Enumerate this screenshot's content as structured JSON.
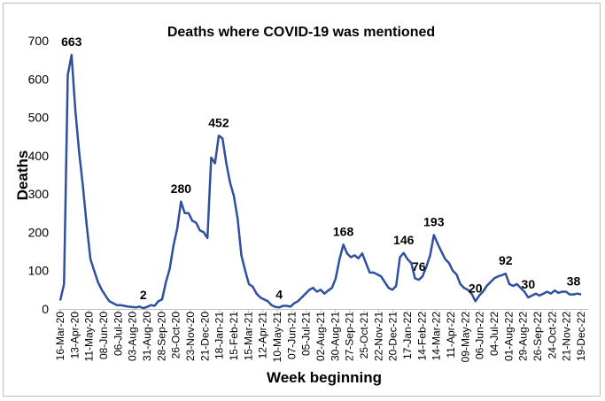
{
  "chart_data": {
    "type": "line",
    "title": "Deaths where COVID-19 was mentioned",
    "xlabel": "Week beginning",
    "ylabel": "Deaths",
    "ylim": [
      0,
      700
    ],
    "yticks": [
      0,
      100,
      200,
      300,
      400,
      500,
      600,
      700
    ],
    "grid": false,
    "legend": "none",
    "line_color": "#2f4f9f",
    "xtick_labels": [
      "16-Mar-20",
      "13-Apr-20",
      "11-May-20",
      "08-Jun-20",
      "06-Jul-20",
      "03-Aug-20",
      "31-Aug-20",
      "28-Sep-20",
      "26-Oct-20",
      "23-Nov-20",
      "21-Dec-20",
      "18-Jan-21",
      "15-Feb-21",
      "15-Mar-21",
      "12-Apr-21",
      "10-May-21",
      "07-Jun-21",
      "05-Jul-21",
      "02-Aug-21",
      "30-Aug-21",
      "27-Sep-21",
      "25-Oct-21",
      "22-Nov-21",
      "20-Dec-21",
      "17-Jan-22",
      "14-Feb-22",
      "14-Mar-22",
      "11-Apr-22",
      "09-May-22",
      "06-Jun-22",
      "04-Jul-22",
      "01-Aug-22",
      "29-Aug-22",
      "26-Sep-22",
      "24-Oct-22",
      "21-Nov-22",
      "19-Dec-22"
    ],
    "values": [
      22,
      65,
      610,
      663,
      520,
      410,
      320,
      220,
      130,
      100,
      70,
      50,
      35,
      20,
      15,
      10,
      10,
      8,
      6,
      5,
      4,
      6,
      2,
      5,
      10,
      8,
      20,
      25,
      70,
      105,
      165,
      210,
      280,
      250,
      250,
      230,
      225,
      205,
      200,
      185,
      395,
      380,
      452,
      445,
      380,
      330,
      295,
      235,
      140,
      100,
      65,
      58,
      40,
      30,
      25,
      20,
      10,
      5,
      4,
      8,
      8,
      6,
      15,
      20,
      30,
      40,
      50,
      55,
      45,
      50,
      40,
      48,
      55,
      80,
      130,
      168,
      145,
      135,
      140,
      132,
      145,
      120,
      95,
      95,
      90,
      85,
      70,
      55,
      50,
      60,
      135,
      146,
      130,
      120,
      80,
      76,
      85,
      110,
      140,
      193,
      170,
      150,
      130,
      120,
      100,
      90,
      65,
      55,
      50,
      40,
      20,
      35,
      45,
      60,
      70,
      80,
      85,
      88,
      92,
      65,
      60,
      65,
      55,
      45,
      30,
      35,
      40,
      35,
      40,
      45,
      40,
      48,
      42,
      45,
      45,
      38,
      38,
      40,
      38
    ]
  },
  "annotations": [
    {
      "text": "663",
      "index": 3
    },
    {
      "text": "2",
      "index": 22
    },
    {
      "text": "280",
      "index": 32
    },
    {
      "text": "452",
      "index": 42
    },
    {
      "text": "4",
      "index": 58
    },
    {
      "text": "168",
      "index": 75
    },
    {
      "text": "146",
      "index": 91
    },
    {
      "text": "76",
      "index": 95
    },
    {
      "text": "193",
      "index": 99
    },
    {
      "text": "20",
      "index": 110
    },
    {
      "text": "92",
      "index": 118
    },
    {
      "text": "30",
      "index": 124
    },
    {
      "text": "38",
      "index": 136
    }
  ]
}
